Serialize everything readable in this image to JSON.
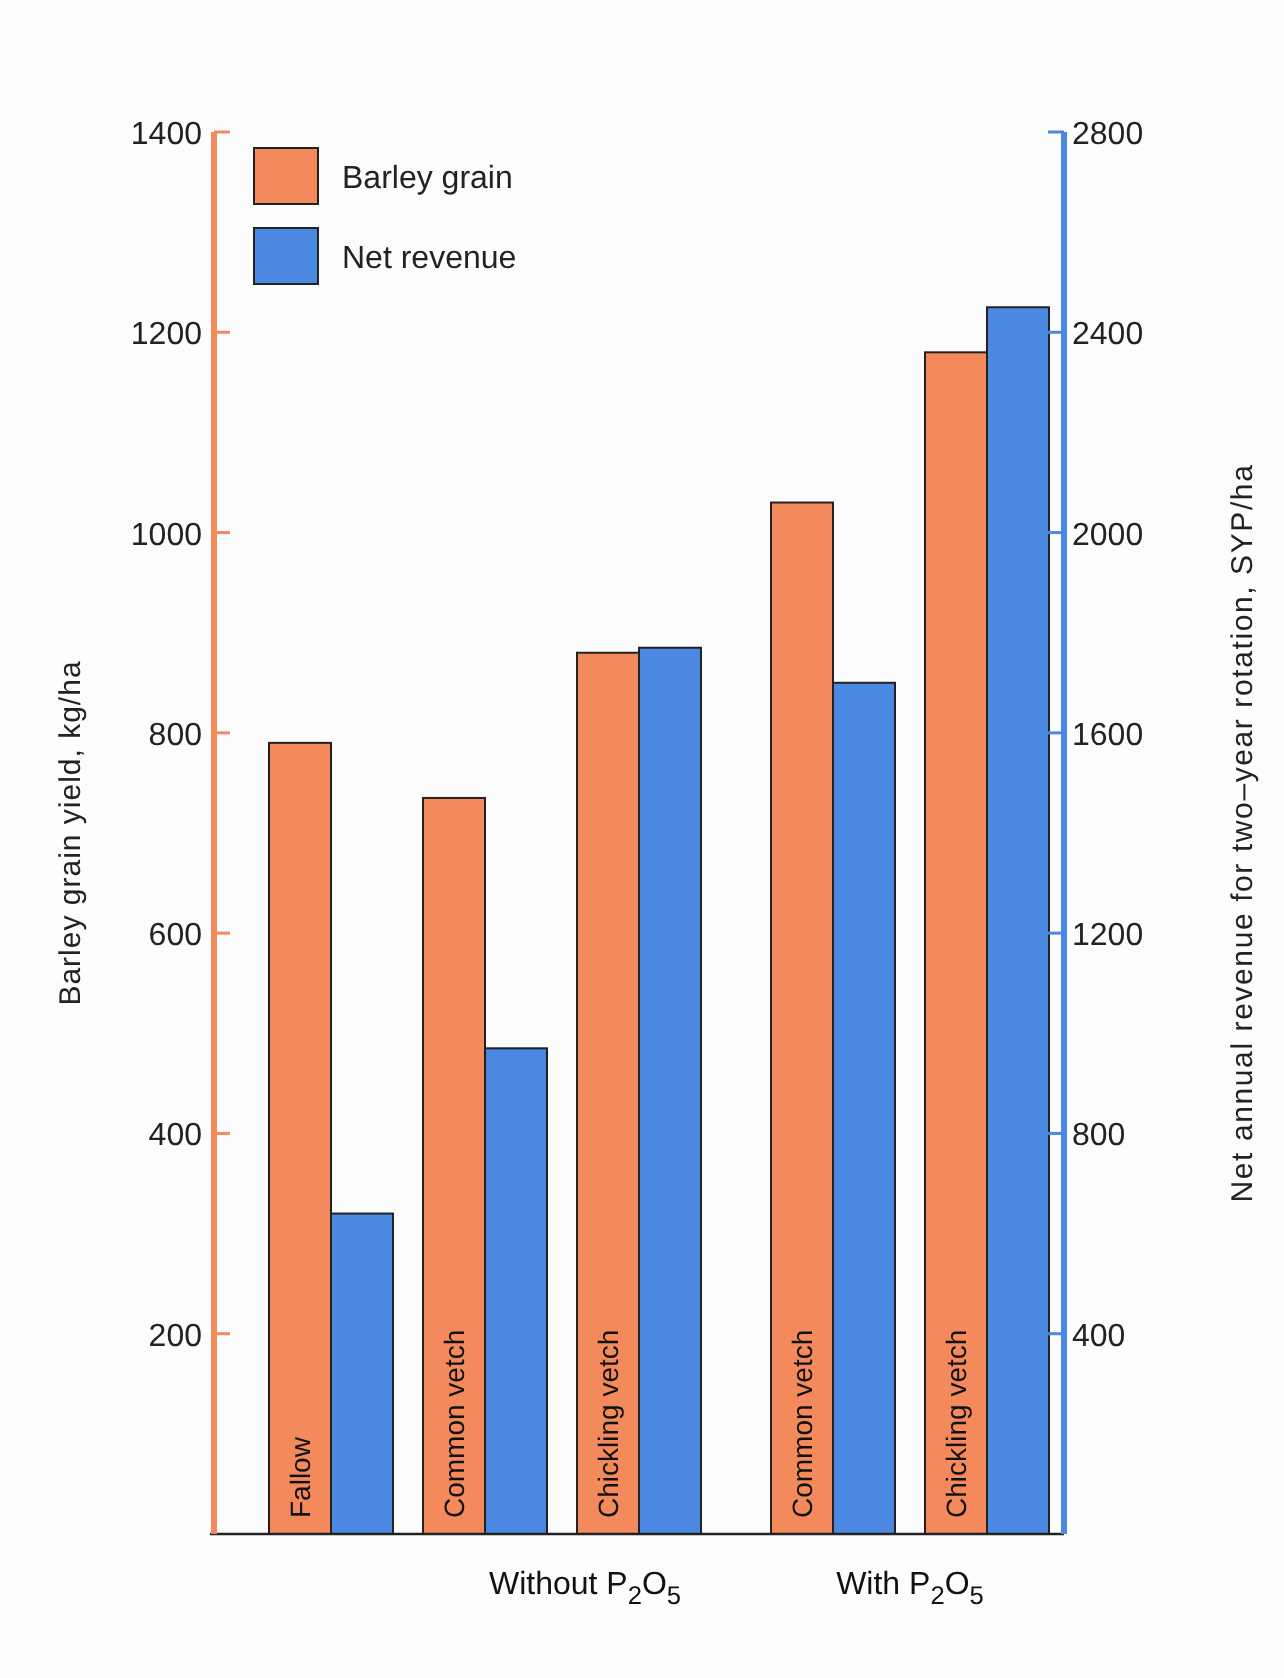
{
  "chart_data": {
    "type": "bar",
    "categories": [
      "Fallow",
      "Common vetch",
      "Chickling vetch",
      "Common vetch",
      "Chickling vetch"
    ],
    "series": [
      {
        "name": "Barley grain",
        "color": "#f48a5b",
        "values": [
          790,
          735,
          880,
          1030,
          1180
        ]
      },
      {
        "name": "Net revenue",
        "color": "#4a88e2",
        "axis": "y2",
        "values": [
          640,
          970,
          1770,
          1700,
          2450
        ]
      }
    ],
    "ylabel": "Barley grain yield, kg/ha",
    "y2label": "Net annual revenue for two–year rotation, SYP/ha",
    "ylim": [
      0,
      1400
    ],
    "yticks": [
      200,
      400,
      600,
      800,
      1000,
      1200,
      1400
    ],
    "y2lim": [
      0,
      2800
    ],
    "y2ticks": [
      400,
      800,
      1200,
      1600,
      2000,
      2400,
      2800
    ],
    "annotations": [
      "Without P$_{2}$O$_{5}$",
      "With P$_{2}$O$_{5}$"
    ],
    "legend": "top left",
    "grid": false
  }
}
